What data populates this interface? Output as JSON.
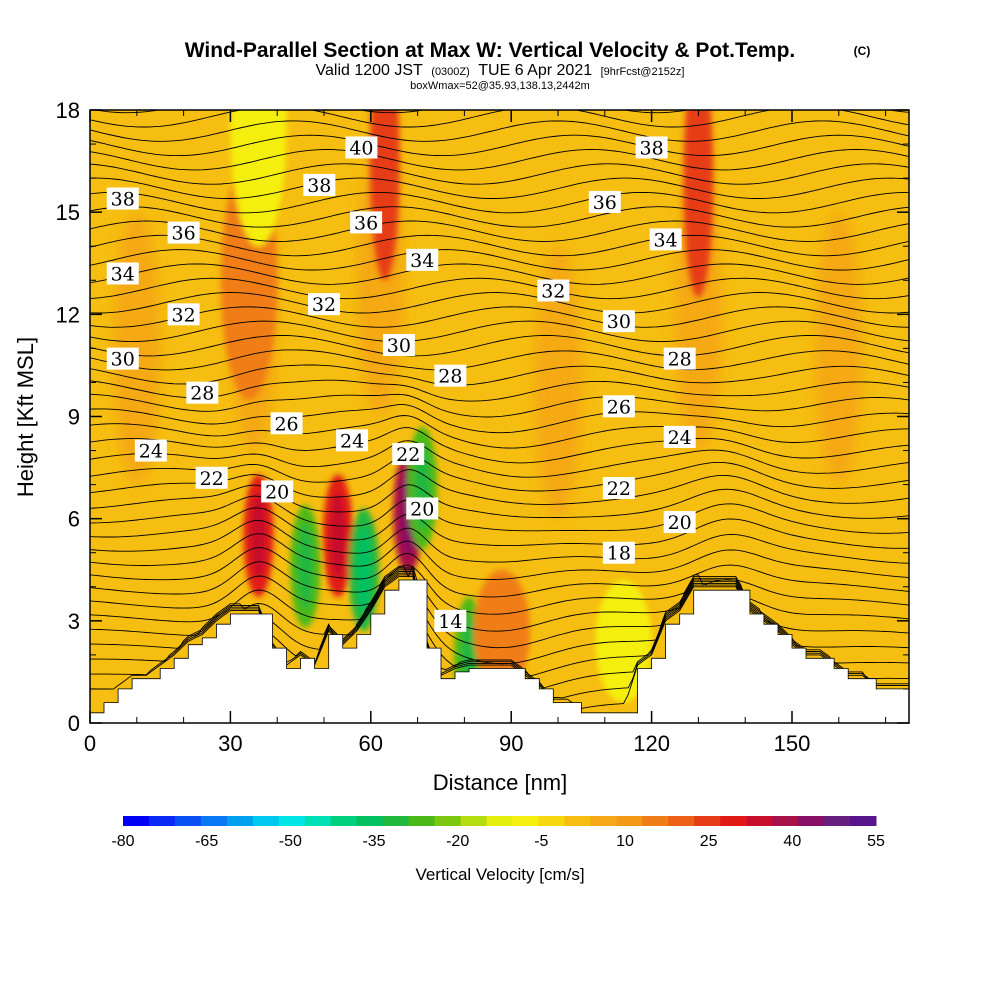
{
  "title": {
    "main": "Wind-Parallel Section at Max W: Vertical Velocity & Pot.Temp.",
    "copyright": "(C)",
    "valid_a": "Valid 1200 JST",
    "valid_utc": "(0300Z)",
    "valid_b": "TUE 6 Apr 2021",
    "forecast": "[9hrFcst@2152z]",
    "box": "boxWmax=52@35.93,138.13,2442m"
  },
  "colors": {
    "fill_base": "#F6BE10",
    "warm": "#F49818",
    "hot": "#EE5F18",
    "red": "#E21A17",
    "yellow": "#F5EF10",
    "green": "#4BB919",
    "terrain": "#FFFFFF",
    "contour": "#000000"
  },
  "chart_data": {
    "type": "heatmap",
    "xlabel": "Distance [nm]",
    "ylabel": "Height [Kft MSL]",
    "xlim": [
      0,
      175
    ],
    "ylim": [
      0,
      18
    ],
    "xticks": [
      0,
      30,
      60,
      90,
      120,
      150
    ],
    "yticks": [
      0,
      3,
      6,
      9,
      12,
      15,
      18
    ],
    "colorbar": {
      "title": "Vertical Velocity [cm/s]",
      "tick_labels": [
        -80,
        -65,
        -50,
        -35,
        -20,
        -5,
        10,
        25,
        40,
        55
      ],
      "levels": [
        -80,
        -75,
        -70,
        -65,
        -60,
        -55,
        -50,
        -45,
        -40,
        -35,
        -30,
        -25,
        -20,
        -15,
        -10,
        -5,
        0,
        5,
        10,
        15,
        20,
        25,
        30,
        35,
        40,
        45,
        50,
        55
      ],
      "colors": [
        "#0000F5",
        "#0A28F5",
        "#0A50F5",
        "#0A78F5",
        "#00A0F0",
        "#00C8F0",
        "#00E6E6",
        "#00E0B4",
        "#00D080",
        "#00C060",
        "#22B840",
        "#4BB919",
        "#7CC810",
        "#B4DC10",
        "#E6EE10",
        "#F5EF10",
        "#F6D810",
        "#F6BE10",
        "#F6A816",
        "#F49818",
        "#F07D18",
        "#EE5F18",
        "#E63C18",
        "#E21A17",
        "#C8102C",
        "#A8104A",
        "#881064",
        "#682080",
        "#58168C"
      ]
    },
    "terrain_profile": {
      "distance_nm": [
        0,
        3,
        6,
        9,
        12,
        15,
        18,
        21,
        24,
        27,
        30,
        33,
        36,
        39,
        42,
        45,
        48,
        51,
        54,
        57,
        60,
        63,
        66,
        69,
        72,
        75,
        78,
        81,
        84,
        87,
        90,
        93,
        96,
        99,
        102,
        105,
        108,
        111,
        114,
        117,
        120,
        123,
        126,
        129,
        132,
        135,
        138,
        141,
        144,
        147,
        150,
        153,
        156,
        159,
        162,
        165,
        168,
        171,
        175
      ],
      "height_kft": [
        0.3,
        0.6,
        1.0,
        1.3,
        1.3,
        1.6,
        1.9,
        2.3,
        2.5,
        2.9,
        3.2,
        3.2,
        3.2,
        2.2,
        1.6,
        1.9,
        1.6,
        2.6,
        2.2,
        2.6,
        3.2,
        3.9,
        4.2,
        4.2,
        2.2,
        1.3,
        1.5,
        1.6,
        1.6,
        1.6,
        1.6,
        1.3,
        1.0,
        0.6,
        0.6,
        0.3,
        0.3,
        0.3,
        0.3,
        1.6,
        1.9,
        2.9,
        3.2,
        3.9,
        3.9,
        3.9,
        3.9,
        3.2,
        2.9,
        2.6,
        2.2,
        1.9,
        1.9,
        1.6,
        1.3,
        1.3,
        1.0,
        1.0,
        1.0
      ]
    },
    "vertical_velocity_features_cms": [
      {
        "x": 36,
        "y": 5.5,
        "value": 30
      },
      {
        "x": 46,
        "y": 4.6,
        "value": -30
      },
      {
        "x": 53,
        "y": 5.5,
        "value": 30
      },
      {
        "x": 58.5,
        "y": 4.5,
        "value": -35
      },
      {
        "x": 68,
        "y": 6.2,
        "value": 40
      },
      {
        "x": 71,
        "y": 6.9,
        "value": -30
      },
      {
        "x": 81,
        "y": 1.9,
        "value": -30
      },
      {
        "x": 88,
        "y": 2.7,
        "value": 15
      },
      {
        "x": 114,
        "y": 2.4,
        "value": -10
      },
      {
        "x": 130,
        "y": 16,
        "value": 25
      },
      {
        "x": 63,
        "y": 16.5,
        "value": 25
      },
      {
        "x": 34,
        "y": 13,
        "value": 15
      },
      {
        "x": 36,
        "y": 17.5,
        "value": -10
      }
    ],
    "potential_temperature_contour_labels_C": [
      {
        "x": 7,
        "y": 15.4,
        "value": "38"
      },
      {
        "x": 20,
        "y": 14.4,
        "value": "36"
      },
      {
        "x": 7,
        "y": 13.2,
        "value": "34"
      },
      {
        "x": 20,
        "y": 12.0,
        "value": "32"
      },
      {
        "x": 7,
        "y": 10.7,
        "value": "30"
      },
      {
        "x": 24,
        "y": 9.7,
        "value": "28"
      },
      {
        "x": 13,
        "y": 8.0,
        "value": "24"
      },
      {
        "x": 26,
        "y": 7.2,
        "value": "22"
      },
      {
        "x": 40,
        "y": 6.8,
        "value": "20"
      },
      {
        "x": 42,
        "y": 8.8,
        "value": "26"
      },
      {
        "x": 49,
        "y": 15.8,
        "value": "38"
      },
      {
        "x": 50,
        "y": 12.3,
        "value": "32"
      },
      {
        "x": 56,
        "y": 8.3,
        "value": "24"
      },
      {
        "x": 58,
        "y": 16.9,
        "value": "40"
      },
      {
        "x": 59,
        "y": 14.7,
        "value": "36"
      },
      {
        "x": 66,
        "y": 11.1,
        "value": "30"
      },
      {
        "x": 68,
        "y": 7.9,
        "value": "22"
      },
      {
        "x": 71,
        "y": 13.6,
        "value": "34"
      },
      {
        "x": 71,
        "y": 6.3,
        "value": "20"
      },
      {
        "x": 77,
        "y": 10.2,
        "value": "28"
      },
      {
        "x": 77,
        "y": 3.0,
        "value": "14"
      },
      {
        "x": 99,
        "y": 12.7,
        "value": "32"
      },
      {
        "x": 110,
        "y": 15.3,
        "value": "36"
      },
      {
        "x": 113,
        "y": 9.3,
        "value": "26"
      },
      {
        "x": 113,
        "y": 6.9,
        "value": "22"
      },
      {
        "x": 113,
        "y": 5.0,
        "value": "18"
      },
      {
        "x": 113,
        "y": 11.8,
        "value": "30"
      },
      {
        "x": 120,
        "y": 16.9,
        "value": "38"
      },
      {
        "x": 123,
        "y": 14.2,
        "value": "34"
      },
      {
        "x": 126,
        "y": 10.7,
        "value": "28"
      },
      {
        "x": 126,
        "y": 8.4,
        "value": "24"
      },
      {
        "x": 126,
        "y": 5.9,
        "value": "20"
      }
    ]
  }
}
